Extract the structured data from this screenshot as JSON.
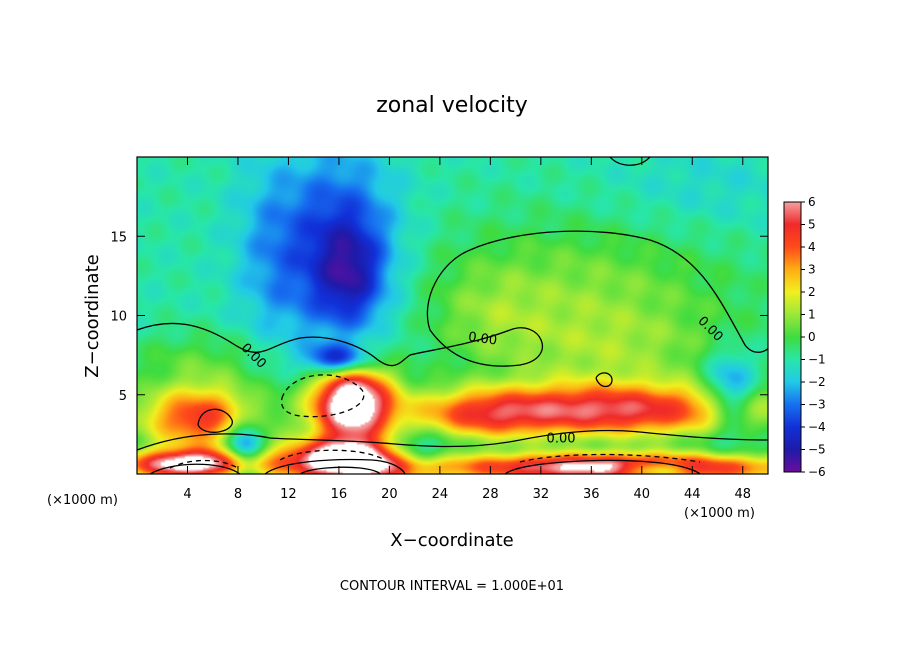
{
  "chart_data": {
    "type": "heatmap",
    "title": "zonal velocity",
    "xlabel": "X−coordinate",
    "ylabel": "Z−coordinate",
    "x_unit_left": "(×1000 m)",
    "x_unit_right": "(×1000 m)",
    "footer": "CONTOUR INTERVAL = 1.000E+01",
    "xlim": [
      0,
      50
    ],
    "ylim": [
      0,
      20
    ],
    "x_ticks": [
      4,
      8,
      12,
      16,
      20,
      24,
      28,
      32,
      36,
      40,
      44,
      48
    ],
    "x_tick_labels": [
      "4",
      "8",
      "12",
      "16",
      "20",
      "24",
      "28",
      "32",
      "36",
      "40",
      "44",
      "48"
    ],
    "y_ticks": [
      5,
      10,
      15
    ],
    "y_tick_labels": [
      "5",
      "10",
      "15"
    ],
    "colorbar": {
      "min": -6,
      "max": 6,
      "ticks": [
        6,
        5,
        4,
        3,
        2,
        1,
        0,
        -1,
        -2,
        -3,
        -4,
        -5,
        -6
      ],
      "tick_labels": [
        "6",
        "5",
        "4",
        "3",
        "2",
        "1",
        "0",
        "−1",
        "−2",
        "−3",
        "−4",
        "−5",
        "−6"
      ],
      "stops": [
        {
          "v": -6,
          "c": "#6a0d9e"
        },
        {
          "v": -5,
          "c": "#1f1aa8"
        },
        {
          "v": -4,
          "c": "#1130d8"
        },
        {
          "v": -3,
          "c": "#1770f0"
        },
        {
          "v": -2,
          "c": "#22c9e8"
        },
        {
          "v": -1,
          "c": "#28e6a8"
        },
        {
          "v": 0,
          "c": "#3fdc3f"
        },
        {
          "v": 1,
          "c": "#9ae83a"
        },
        {
          "v": 2,
          "c": "#f0f01e"
        },
        {
          "v": 3,
          "c": "#ffad14"
        },
        {
          "v": 4,
          "c": "#ff4a1a"
        },
        {
          "v": 5,
          "c": "#ef2a2a"
        },
        {
          "v": 6,
          "c": "#f5a0a0"
        }
      ]
    },
    "contour_labels": [
      {
        "text": "0.00",
        "x": 9.3,
        "y": 7.5,
        "angle": 45
      },
      {
        "text": "0.00",
        "x": 27.4,
        "y": 8.6,
        "angle": 8
      },
      {
        "text": "0.00",
        "x": 45.5,
        "y": 9.2,
        "angle": 45
      },
      {
        "text": "0.00",
        "x": 33.6,
        "y": 2.3,
        "angle": 0
      }
    ]
  }
}
